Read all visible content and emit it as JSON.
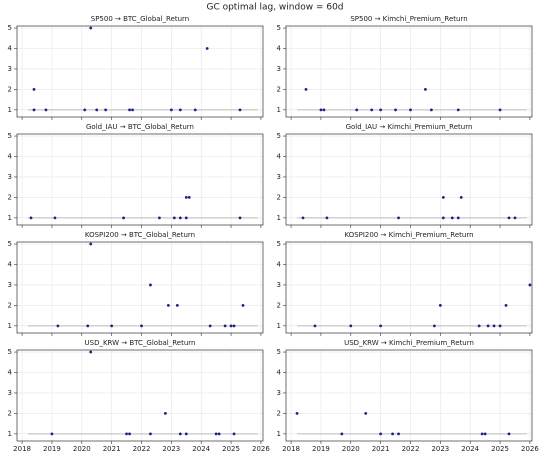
{
  "title": "GC optimal lag, window = 60d",
  "chart_data": [
    {
      "type": "scatter",
      "title": "SP500 → BTC_Global_Return",
      "xlim": [
        2017.83,
        2026.07
      ],
      "ylim": [
        0.65,
        5.1
      ],
      "xticks": [
        2018,
        2019,
        2020,
        2021,
        2022,
        2023,
        2024,
        2025,
        2026
      ],
      "yticks": [
        1,
        2,
        3,
        4,
        5
      ],
      "grid": true,
      "line_color": "#bbbbbb",
      "color": "#1a237e",
      "line": {
        "x": [
          2018.2,
          2025.9
        ],
        "y": [
          1,
          1
        ]
      },
      "x": [
        2018.4,
        2020.3,
        2024.2,
        2018.4,
        2018.8,
        2020.1,
        2020.5,
        2020.8,
        2021.6,
        2021.7,
        2023.0,
        2023.3,
        2023.8,
        2025.3
      ],
      "y": [
        2,
        5,
        4,
        1,
        1,
        1,
        1,
        1,
        1,
        1,
        1,
        1,
        1,
        1
      ]
    },
    {
      "type": "scatter",
      "title": "SP500 → Kimchi_Premium_Return",
      "xlim": [
        2017.83,
        2026.07
      ],
      "ylim": [
        0.65,
        5.1
      ],
      "xticks": [
        2018,
        2019,
        2020,
        2021,
        2022,
        2023,
        2024,
        2025,
        2026
      ],
      "yticks": [
        1,
        2,
        3,
        4,
        5
      ],
      "grid": true,
      "line_color": "#bbbbbb",
      "color": "#1a237e",
      "line": {
        "x": [
          2018.2,
          2025.9
        ],
        "y": [
          1,
          1
        ]
      },
      "x": [
        2018.5,
        2022.5,
        2019.0,
        2019.1,
        2020.2,
        2020.7,
        2021.0,
        2021.5,
        2022.0,
        2022.7,
        2023.6,
        2025.0
      ],
      "y": [
        2,
        2,
        1,
        1,
        1,
        1,
        1,
        1,
        1,
        1,
        1,
        1
      ]
    },
    {
      "type": "scatter",
      "title": "Gold_IAU → BTC_Global_Return",
      "xlim": [
        2017.83,
        2026.07
      ],
      "ylim": [
        0.65,
        5.1
      ],
      "xticks": [
        2018,
        2019,
        2020,
        2021,
        2022,
        2023,
        2024,
        2025,
        2026
      ],
      "yticks": [
        1,
        2,
        3,
        4,
        5
      ],
      "grid": true,
      "line_color": "#bbbbbb",
      "color": "#1a237e",
      "line": {
        "x": [
          2018.2,
          2025.9
        ],
        "y": [
          1,
          1
        ]
      },
      "x": [
        2023.5,
        2023.6,
        2018.3,
        2019.1,
        2021.4,
        2022.6,
        2023.1,
        2023.3,
        2023.5,
        2025.3
      ],
      "y": [
        2,
        2,
        1,
        1,
        1,
        1,
        1,
        1,
        1,
        1
      ]
    },
    {
      "type": "scatter",
      "title": "Gold_IAU → Kimchi_Premium_Return",
      "xlim": [
        2017.83,
        2026.07
      ],
      "ylim": [
        0.65,
        5.1
      ],
      "xticks": [
        2018,
        2019,
        2020,
        2021,
        2022,
        2023,
        2024,
        2025,
        2026
      ],
      "yticks": [
        1,
        2,
        3,
        4,
        5
      ],
      "grid": true,
      "line_color": "#bbbbbb",
      "color": "#1a237e",
      "line": {
        "x": [
          2018.2,
          2025.9
        ],
        "y": [
          1,
          1
        ]
      },
      "x": [
        2023.1,
        2023.7,
        2018.4,
        2019.2,
        2021.6,
        2023.1,
        2023.4,
        2023.6,
        2025.3,
        2025.5
      ],
      "y": [
        2,
        2,
        1,
        1,
        1,
        1,
        1,
        1,
        1,
        1
      ]
    },
    {
      "type": "scatter",
      "title": "KOSPI200 → BTC_Global_Return",
      "xlim": [
        2017.83,
        2026.07
      ],
      "ylim": [
        0.65,
        5.1
      ],
      "xticks": [
        2018,
        2019,
        2020,
        2021,
        2022,
        2023,
        2024,
        2025,
        2026
      ],
      "yticks": [
        1,
        2,
        3,
        4,
        5
      ],
      "grid": true,
      "line_color": "#bbbbbb",
      "color": "#1a237e",
      "line": {
        "x": [
          2018.2,
          2025.9
        ],
        "y": [
          1,
          1
        ]
      },
      "x": [
        2020.3,
        2025.4,
        2022.3,
        2022.9,
        2023.2,
        2019.2,
        2020.2,
        2021.0,
        2022.0,
        2024.3,
        2024.8,
        2025.0,
        2025.1
      ],
      "y": [
        5,
        2,
        3,
        2,
        2,
        1,
        1,
        1,
        1,
        1,
        1,
        1,
        1
      ]
    },
    {
      "type": "scatter",
      "title": "KOSPI200 → Kimchi_Premium_Return",
      "xlim": [
        2017.83,
        2026.07
      ],
      "ylim": [
        0.65,
        5.1
      ],
      "xticks": [
        2018,
        2019,
        2020,
        2021,
        2022,
        2023,
        2024,
        2025,
        2026
      ],
      "yticks": [
        1,
        2,
        3,
        4,
        5
      ],
      "grid": true,
      "line_color": "#bbbbbb",
      "color": "#1a237e",
      "line": {
        "x": [
          2018.2,
          2025.9
        ],
        "y": [
          1,
          1
        ]
      },
      "x": [
        2026.0,
        2025.2,
        2023.0,
        2018.8,
        2020.0,
        2021.0,
        2022.8,
        2024.3,
        2024.6,
        2024.8,
        2025.0
      ],
      "y": [
        3,
        2,
        2,
        1,
        1,
        1,
        1,
        1,
        1,
        1,
        1
      ]
    },
    {
      "type": "scatter",
      "title": "USD_KRW → BTC_Global_Return",
      "xlim": [
        2017.83,
        2026.07
      ],
      "ylim": [
        0.65,
        5.1
      ],
      "xticks": [
        2018,
        2019,
        2020,
        2021,
        2022,
        2023,
        2024,
        2025,
        2026
      ],
      "yticks": [
        1,
        2,
        3,
        4,
        5
      ],
      "grid": true,
      "line_color": "#bbbbbb",
      "color": "#1a237e",
      "line": {
        "x": [
          2018.2,
          2025.9
        ],
        "y": [
          1,
          1
        ]
      },
      "x": [
        2020.3,
        2022.8,
        2019.0,
        2021.5,
        2021.6,
        2022.3,
        2023.3,
        2023.5,
        2024.5,
        2024.6,
        2025.1
      ],
      "y": [
        5,
        2,
        1,
        1,
        1,
        1,
        1,
        1,
        1,
        1,
        1
      ]
    },
    {
      "type": "scatter",
      "title": "USD_KRW → Kimchi_Premium_Return",
      "xlim": [
        2017.83,
        2026.07
      ],
      "ylim": [
        0.65,
        5.1
      ],
      "xticks": [
        2018,
        2019,
        2020,
        2021,
        2022,
        2023,
        2024,
        2025,
        2026
      ],
      "yticks": [
        1,
        2,
        3,
        4,
        5
      ],
      "grid": true,
      "line_color": "#bbbbbb",
      "color": "#1a237e",
      "line": {
        "x": [
          2018.2,
          2025.9
        ],
        "y": [
          1,
          1
        ]
      },
      "x": [
        2018.2,
        2020.5,
        2019.7,
        2021.0,
        2021.4,
        2021.6,
        2024.4,
        2024.5,
        2025.3
      ],
      "y": [
        2,
        2,
        1,
        1,
        1,
        1,
        1,
        1,
        1
      ]
    }
  ]
}
